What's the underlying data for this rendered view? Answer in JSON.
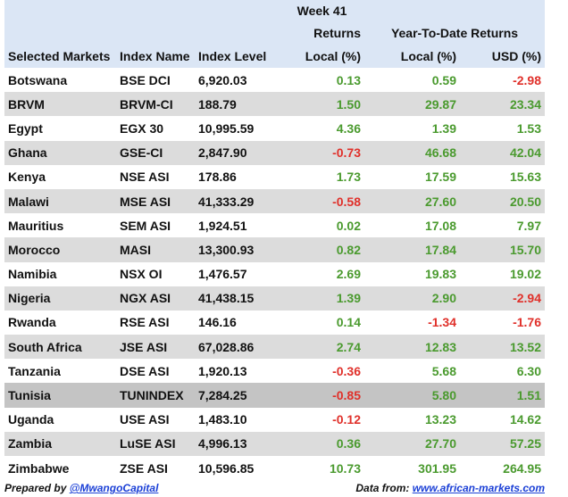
{
  "header": {
    "week_top": "Week 41",
    "week_mid": "Returns",
    "ytd_mid": "Year-To-Date Returns",
    "columns": [
      "Selected Markets",
      "Index Name",
      "Index Level",
      "Local (%)",
      "Local (%)",
      "USD (%)"
    ]
  },
  "rows": [
    {
      "market": "Botswana",
      "index": "BSE DCI",
      "level": "6,920.03",
      "week": "0.13",
      "ytd_local": "0.59",
      "ytd_usd": "-2.98"
    },
    {
      "market": "BRVM",
      "index": "BRVM-CI",
      "level": "188.79",
      "week": "1.50",
      "ytd_local": "29.87",
      "ytd_usd": "23.34"
    },
    {
      "market": "Egypt",
      "index": "EGX 30",
      "level": "10,995.59",
      "week": "4.36",
      "ytd_local": "1.39",
      "ytd_usd": "1.53"
    },
    {
      "market": "Ghana",
      "index": "GSE-CI",
      "level": "2,847.90",
      "week": "-0.73",
      "ytd_local": "46.68",
      "ytd_usd": "42.04"
    },
    {
      "market": "Kenya",
      "index": "NSE ASI",
      "level": "178.86",
      "week": "1.73",
      "ytd_local": "17.59",
      "ytd_usd": "15.63"
    },
    {
      "market": "Malawi",
      "index": "MSE ASI",
      "level": "41,333.29",
      "week": "-0.58",
      "ytd_local": "27.60",
      "ytd_usd": "20.50"
    },
    {
      "market": "Mauritius",
      "index": "SEM ASI",
      "level": "1,924.51",
      "week": "0.02",
      "ytd_local": "17.08",
      "ytd_usd": "7.97"
    },
    {
      "market": "Morocco",
      "index": "MASI",
      "level": "13,300.93",
      "week": "0.82",
      "ytd_local": "17.84",
      "ytd_usd": "15.70"
    },
    {
      "market": "Namibia",
      "index": "NSX OI",
      "level": "1,476.57",
      "week": "2.69",
      "ytd_local": "19.83",
      "ytd_usd": "19.02"
    },
    {
      "market": "Nigeria",
      "index": "NGX ASI",
      "level": "41,438.15",
      "week": "1.39",
      "ytd_local": "2.90",
      "ytd_usd": "-2.94"
    },
    {
      "market": "Rwanda",
      "index": "RSE ASI",
      "level": "146.16",
      "week": "0.14",
      "ytd_local": "-1.34",
      "ytd_usd": "-1.76"
    },
    {
      "market": "South Africa",
      "index": "JSE ASI",
      "level": "67,028.86",
      "week": "2.74",
      "ytd_local": "12.83",
      "ytd_usd": "13.52"
    },
    {
      "market": "Tanzania",
      "index": "DSE ASI",
      "level": "1,920.13",
      "week": "-0.36",
      "ytd_local": "5.68",
      "ytd_usd": "6.30"
    },
    {
      "market": "Tunisia",
      "index": "TUNINDEX",
      "level": "7,284.25",
      "week": "-0.85",
      "ytd_local": "5.80",
      "ytd_usd": "1.51"
    },
    {
      "market": "Uganda",
      "index": "USE ASI",
      "level": "1,483.10",
      "week": "-0.12",
      "ytd_local": "13.23",
      "ytd_usd": "14.62"
    },
    {
      "market": "Zambia",
      "index": "LuSE ASI",
      "level": "4,996.13",
      "week": "0.36",
      "ytd_local": "27.70",
      "ytd_usd": "57.25"
    },
    {
      "market": "Zimbabwe",
      "index": "ZSE ASI",
      "level": "10,596.85",
      "week": "10.73",
      "ytd_local": "301.95",
      "ytd_usd": "264.95"
    }
  ],
  "highlight_row": "Tunisia",
  "colors": {
    "positive": "#4a9a2e",
    "negative": "#e0302a",
    "header_bg": "#dbe6f5",
    "row_alt": "#dcdcdc"
  },
  "footer": {
    "prepared_label": "Prepared by ",
    "prepared_handle": "@MwangoCapital",
    "source_label": "Data from: ",
    "source_link": "www.african-markets.com"
  }
}
